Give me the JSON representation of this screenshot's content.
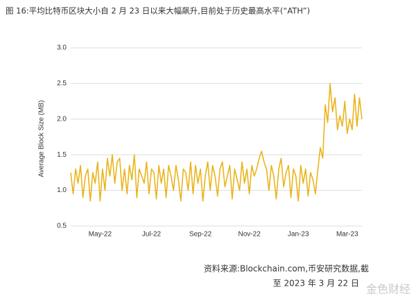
{
  "header": {
    "title": "图 16:平均比特币区块大小自 2 月 23 日以来大幅飙升,目前处于历史最高水平(“ATH”)"
  },
  "chart_data": {
    "type": "line",
    "y_label": "Average Block Size (MB)",
    "categories": [
      null,
      null,
      null,
      null,
      null,
      null,
      null,
      null,
      null,
      null,
      null,
      null,
      "May-22",
      null,
      null,
      null,
      null,
      null,
      null,
      null,
      null,
      null,
      null,
      null,
      null,
      null,
      null,
      null,
      null,
      null,
      null,
      null,
      null,
      "Jul-22",
      null,
      null,
      null,
      null,
      null,
      null,
      null,
      null,
      null,
      null,
      null,
      null,
      null,
      null,
      null,
      null,
      null,
      null,
      null,
      "Sep-22",
      null,
      null,
      null,
      null,
      null,
      null,
      null,
      null,
      null,
      null,
      null,
      null,
      null,
      null,
      null,
      null,
      null,
      null,
      null,
      "Nov-22",
      null,
      null,
      null,
      null,
      null,
      null,
      null,
      null,
      null,
      null,
      null,
      null,
      null,
      null,
      null,
      null,
      null,
      null,
      null,
      "Jan-23",
      null,
      null,
      null,
      null,
      null,
      null,
      null,
      null,
      null,
      null,
      null,
      null,
      null,
      null,
      null,
      null,
      null,
      null,
      null,
      "Mar-23",
      null,
      null,
      null,
      null,
      null,
      null
    ],
    "series": [
      {
        "name": "Average Block Size",
        "color": "#e9b41c",
        "values": [
          1.25,
          0.95,
          1.3,
          1.1,
          1.35,
          0.9,
          1.2,
          1.3,
          0.85,
          1.25,
          1.1,
          1.4,
          0.85,
          1.3,
          1.0,
          1.45,
          1.2,
          1.5,
          1.1,
          1.4,
          1.45,
          1.0,
          1.3,
          0.95,
          1.35,
          1.15,
          1.5,
          0.9,
          1.3,
          1.2,
          1.1,
          1.4,
          0.95,
          1.3,
          1.25,
          0.88,
          1.35,
          1.1,
          1.3,
          0.9,
          1.35,
          1.2,
          1.0,
          1.35,
          1.15,
          0.85,
          1.3,
          1.25,
          1.0,
          1.4,
          0.95,
          1.35,
          1.1,
          1.3,
          0.85,
          1.2,
          1.4,
          1.0,
          1.35,
          1.2,
          0.92,
          1.3,
          1.4,
          1.05,
          1.2,
          1.35,
          0.88,
          1.3,
          1.15,
          1.0,
          1.4,
          1.1,
          1.3,
          0.95,
          1.35,
          1.2,
          1.3,
          1.45,
          1.55,
          1.4,
          1.3,
          1.0,
          1.35,
          1.2,
          0.88,
          1.3,
          1.45,
          1.05,
          1.25,
          1.35,
          0.9,
          1.3,
          1.2,
          0.85,
          1.35,
          1.1,
          1.3,
          0.92,
          1.25,
          1.15,
          0.95,
          1.3,
          1.6,
          1.45,
          2.2,
          1.95,
          2.5,
          2.1,
          2.3,
          1.85,
          2.05,
          1.9,
          2.25,
          1.8,
          2.0,
          1.85,
          2.35,
          1.9,
          2.3,
          2.0
        ]
      }
    ],
    "ylim": [
      0.5,
      3.0
    ],
    "yticks": [
      {
        "value": 0.5,
        "label": "0.5"
      },
      {
        "value": 1,
        "label": "1.0"
      },
      {
        "value": 1.5,
        "label": "1.5"
      },
      {
        "value": 2,
        "label": "2.0"
      },
      {
        "value": 2.5,
        "label": "2.5"
      },
      {
        "value": 3,
        "label": "3.0"
      }
    ],
    "grid": true
  },
  "footer": {
    "source_line1": "资料来源:Blockchain.com,币安研究数据,截",
    "source_line2": "至 2023 年 3 月 22 日",
    "watermark": "金色财经"
  }
}
